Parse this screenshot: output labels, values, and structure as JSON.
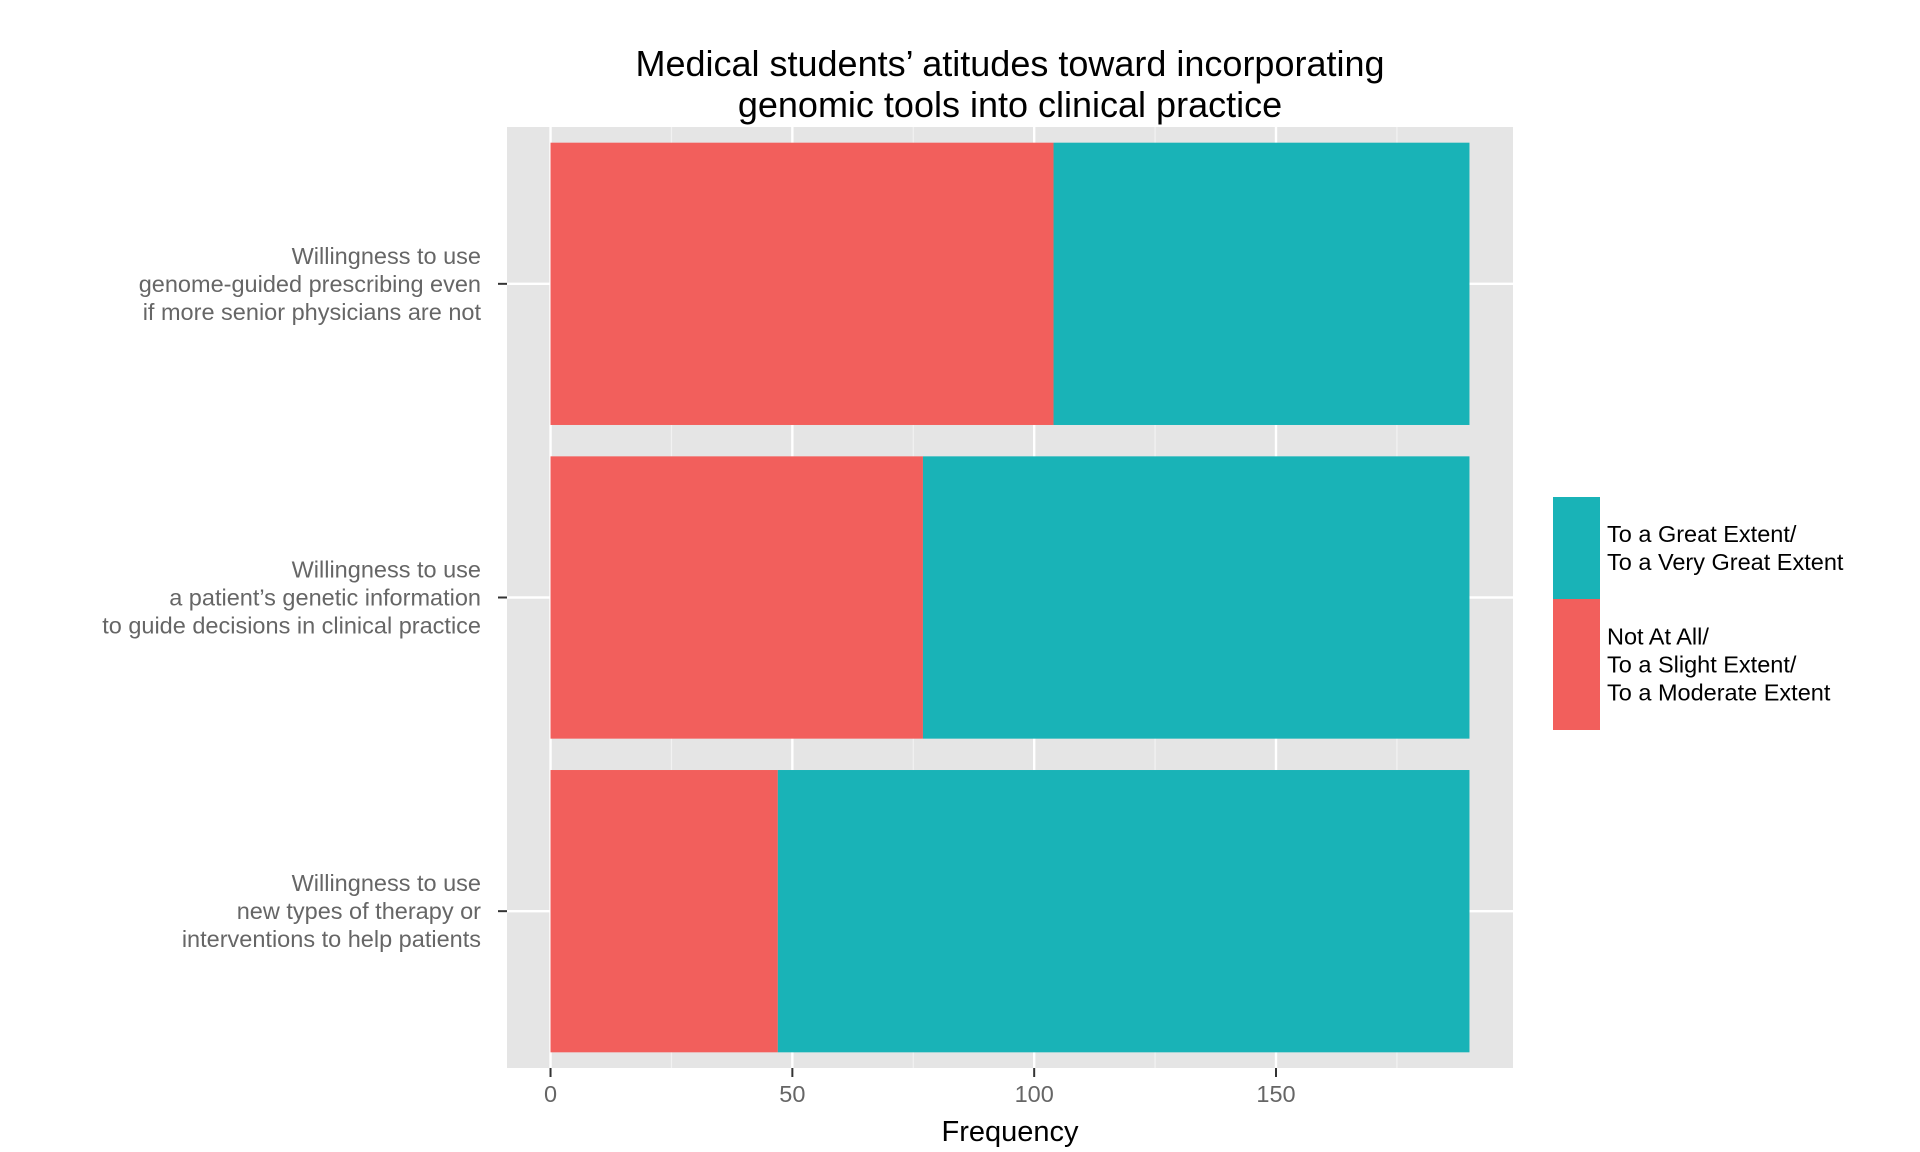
{
  "chart_data": {
    "type": "bar",
    "orientation": "horizontal",
    "stacked": true,
    "title_lines": [
      "Medical students’ atitudes toward incorporating",
      "genomic tools into clinical practice"
    ],
    "xlabel": "Frequency",
    "ylabel": "",
    "xlim": [
      -9,
      199
    ],
    "x_ticks": [
      0,
      50,
      100,
      150
    ],
    "grid": true,
    "categories": [
      [
        "Willingness to use",
        "genome-guided prescribing even",
        "if more senior physicians are not"
      ],
      [
        "Willingness to use",
        "a patient’s genetic information",
        "to guide decisions in clinical practice"
      ],
      [
        "Willingness to use",
        "new types of therapy or",
        "interventions to help patients"
      ]
    ],
    "series": [
      {
        "name": "Not At All/ To a Slight Extent/ To a Moderate Extent",
        "color": "#F25F5C",
        "values": [
          104,
          77,
          47
        ]
      },
      {
        "name": "To a Great Extent/ To a Very Great Extent",
        "color": "#19B3B7",
        "values": [
          86,
          113,
          143
        ]
      }
    ],
    "legend": {
      "position": "right",
      "order": [
        1,
        0
      ],
      "labels": [
        [
          "To a Great Extent/",
          "To a Very Great Extent"
        ],
        [
          "Not At All/",
          "To a Slight Extent/",
          "To a Moderate Extent"
        ]
      ]
    }
  }
}
